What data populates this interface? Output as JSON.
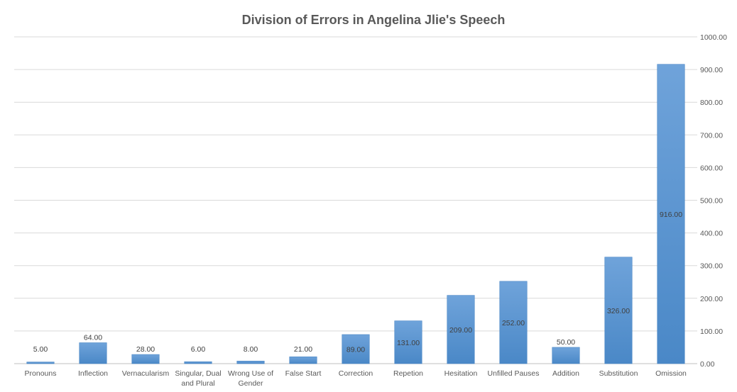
{
  "chart_data": {
    "type": "bar",
    "title": "Division of Errors in Angelina Jlie's Speech",
    "categories": [
      "Pronouns",
      "Inflection",
      "Vernacularism",
      "Singular, Dual and Plural",
      "Wrong Use of Gender",
      "False Start",
      "Correction",
      "Repetion",
      "Hesitation",
      "Unfilled Pauses",
      "Addition",
      "Substitution",
      "Omission"
    ],
    "values": [
      5,
      64,
      28,
      6,
      8,
      21,
      89,
      131,
      209,
      252,
      50,
      326,
      916
    ],
    "value_labels": [
      "5.00",
      "64.00",
      "28.00",
      "6.00",
      "8.00",
      "21.00",
      "89.00",
      "131.00",
      "209.00",
      "252.00",
      "50.00",
      "326.00",
      "916.00"
    ],
    "ylim": [
      0,
      1000
    ],
    "yticks": [
      0,
      100,
      200,
      300,
      400,
      500,
      600,
      700,
      800,
      900,
      1000
    ],
    "ytick_labels": [
      "0.00",
      "100.00",
      "200.00",
      "300.00",
      "400.00",
      "500.00",
      "600.00",
      "700.00",
      "800.00",
      "900.00",
      "1000.00"
    ],
    "y_axis_side": "right",
    "grid": true,
    "legend": "none",
    "bar_color": "#5b9bd5"
  }
}
